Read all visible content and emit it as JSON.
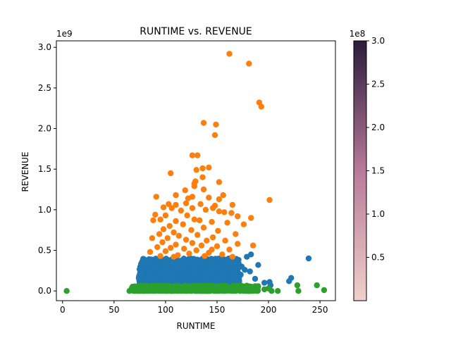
{
  "chart_data": {
    "type": "scatter",
    "title": "RUNTIME vs. REVENUE",
    "xlabel": "RUNTIME",
    "ylabel": "REVENUE",
    "xlim": [
      -6,
      265
    ],
    "ylim": [
      -120000000,
      3080000000
    ],
    "y_offset_label": "1e9",
    "x_ticks": [
      0,
      50,
      100,
      150,
      200,
      250
    ],
    "x_tick_labels": [
      "0",
      "50",
      "100",
      "150",
      "200",
      "250"
    ],
    "y_ticks": [
      0,
      500000000,
      1000000000,
      1500000000,
      2000000000,
      2500000000,
      3000000000
    ],
    "y_tick_labels": [
      "0.0",
      "0.5",
      "1.0",
      "1.5",
      "2.0",
      "2.5",
      "3.0"
    ],
    "grid": false,
    "colors": {
      "orange": "#ff7f0e",
      "blue": "#1f77b4",
      "green": "#2ca02c"
    },
    "series": [
      {
        "color": "#ff7f0e",
        "points": [
          [
            162,
            2920000000
          ],
          [
            181,
            2800000000
          ],
          [
            191,
            2320000000
          ],
          [
            193,
            2270000000
          ],
          [
            137,
            2070000000
          ],
          [
            149,
            2050000000
          ],
          [
            148,
            1920000000
          ],
          [
            126,
            1670000000
          ],
          [
            131,
            1670000000
          ],
          [
            142,
            1520000000
          ],
          [
            136,
            1510000000
          ],
          [
            130,
            1490000000
          ],
          [
            105,
            1450000000
          ],
          [
            136,
            1400000000
          ],
          [
            129,
            1350000000
          ],
          [
            128,
            1320000000
          ],
          [
            152,
            1340000000
          ],
          [
            128,
            1290000000
          ],
          [
            137,
            1250000000
          ],
          [
            119,
            1240000000
          ],
          [
            156,
            1180000000
          ],
          [
            110,
            1180000000
          ],
          [
            126,
            1160000000
          ],
          [
            142,
            1150000000
          ],
          [
            91,
            1160000000
          ],
          [
            122,
            1140000000
          ],
          [
            201,
            1120000000
          ],
          [
            152,
            1130000000
          ],
          [
            165,
            1060000000
          ],
          [
            120,
            1080000000
          ],
          [
            103,
            1070000000
          ],
          [
            110,
            1060000000
          ],
          [
            134,
            1070000000
          ],
          [
            148,
            1050000000
          ],
          [
            98,
            1030000000
          ],
          [
            146,
            1020000000
          ],
          [
            126,
            1020000000
          ],
          [
            139,
            1000000000
          ],
          [
            106,
            1020000000
          ],
          [
            115,
            990000000
          ],
          [
            152,
            980000000
          ],
          [
            157,
            970000000
          ],
          [
            90,
            940000000
          ],
          [
            100,
            930000000
          ],
          [
            170,
            920000000
          ],
          [
            121,
            930000000
          ],
          [
            164,
            960000000
          ],
          [
            183,
            900000000
          ],
          [
            128,
            880000000
          ],
          [
            95,
            880000000
          ],
          [
            133,
            870000000
          ],
          [
            110,
            860000000
          ],
          [
            104,
            800000000
          ],
          [
            117,
            820000000
          ],
          [
            145,
            850000000
          ],
          [
            160,
            840000000
          ],
          [
            176,
            820000000
          ],
          [
            88,
            870000000
          ],
          [
            98,
            760000000
          ],
          [
            137,
            780000000
          ],
          [
            125,
            750000000
          ],
          [
            151,
            740000000
          ],
          [
            108,
            720000000
          ],
          [
            168,
            700000000
          ],
          [
            94,
            700000000
          ],
          [
            131,
            690000000
          ],
          [
            113,
            680000000
          ],
          [
            146,
            660000000
          ],
          [
            102,
            650000000
          ],
          [
            120,
            630000000
          ],
          [
            140,
            620000000
          ],
          [
            158,
            620000000
          ],
          [
            87,
            650000000
          ],
          [
            97,
            600000000
          ],
          [
            126,
            590000000
          ],
          [
            170,
            580000000
          ],
          [
            110,
            570000000
          ],
          [
            185,
            560000000
          ],
          [
            135,
            560000000
          ],
          [
            150,
            550000000
          ],
          [
            92,
            540000000
          ],
          [
            105,
            530000000
          ],
          [
            118,
            520000000
          ],
          [
            145,
            510000000
          ],
          [
            162,
            510000000
          ],
          [
            130,
            500000000
          ],
          [
            100,
            490000000
          ],
          [
            85,
            480000000
          ],
          [
            142,
            470000000
          ],
          [
            123,
            460000000
          ],
          [
            155,
            450000000
          ],
          [
            112,
            440000000
          ],
          [
            95,
            430000000
          ],
          [
            138,
            430000000
          ],
          [
            165,
            420000000
          ],
          [
            108,
            420000000
          ]
        ]
      },
      {
        "color": "#1f77b4",
        "points": [
          [
            239,
            400000000
          ],
          [
            183,
            450000000
          ],
          [
            179,
            420000000
          ],
          [
            190,
            320000000
          ],
          [
            171,
            340000000
          ],
          [
            222,
            160000000
          ],
          [
            220,
            120000000
          ],
          [
            201,
            110000000
          ],
          [
            202,
            70000000
          ],
          [
            177,
            260000000
          ],
          [
            174,
            300000000
          ],
          [
            182,
            240000000
          ],
          [
            76,
            260000000
          ],
          [
            81,
            260000000
          ],
          [
            86,
            330000000
          ],
          [
            84,
            390000000
          ],
          [
            168,
            300000000
          ],
          [
            163,
            250000000
          ],
          [
            160,
            350000000
          ],
          [
            155,
            380000000
          ],
          [
            196,
            100000000
          ],
          [
            187,
            150000000
          ],
          [
            173,
            200000000
          ],
          [
            85,
            200000000
          ],
          [
            80,
            150000000
          ],
          [
            78,
            100000000
          ]
        ],
        "band": {
          "x_range": [
            74,
            172
          ],
          "y_range": [
            60000000,
            400000000
          ]
        }
      },
      {
        "color": "#2ca02c",
        "points": [
          [
            4,
            0
          ],
          [
            254,
            10000000
          ],
          [
            247,
            70000000
          ],
          [
            228,
            70000000
          ],
          [
            229,
            0
          ],
          [
            209,
            0
          ],
          [
            203,
            0
          ],
          [
            196,
            20000000
          ],
          [
            188,
            40000000
          ],
          [
            185,
            20000000
          ],
          [
            65,
            0
          ],
          [
            70,
            10000000
          ],
          [
            200,
            30000000
          ]
        ],
        "band": {
          "x_range": [
            67,
            190
          ],
          "y_range": [
            0,
            65000000
          ]
        }
      }
    ],
    "colorbar": {
      "offset_label": "1e8",
      "min": 0,
      "max": 300000000,
      "ticks": [
        50000000,
        100000000,
        150000000,
        200000000,
        250000000,
        300000000
      ],
      "tick_labels": [
        "0.5",
        "1.0",
        "1.5",
        "2.0",
        "2.5",
        "3.0"
      ],
      "color_low": "#efd0ca",
      "color_mid": "#b97a9a",
      "color_high": "#2b1b3b"
    }
  }
}
